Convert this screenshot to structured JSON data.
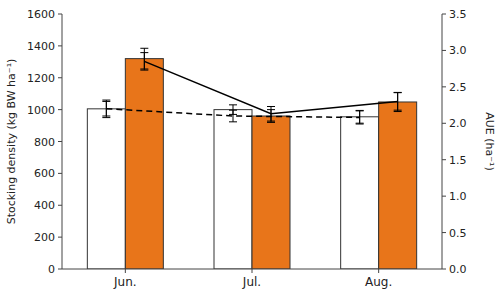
{
  "chart_data": {
    "type": "bar",
    "categories": [
      "Jun.",
      "Jul.",
      "Aug."
    ],
    "series": [
      {
        "type": "bar",
        "color": "white",
        "values": [
          1005,
          1000,
          955
        ],
        "errors": [
          55,
          30,
          40
        ]
      },
      {
        "type": "bar",
        "color": "#E8751A",
        "values": [
          1320,
          960,
          1048
        ],
        "errors": [
          65,
          40,
          60
        ]
      },
      {
        "type": "line",
        "axis": "y2",
        "color": "black",
        "line_style": "solid",
        "values": [
          2.85,
          2.13,
          2.3
        ],
        "errors": [
          0.12,
          0.1,
          0.12
        ]
      },
      {
        "type": "line",
        "axis": "y2",
        "color": "black",
        "line_style": "dashed",
        "values": [
          2.2,
          2.1,
          2.08
        ],
        "errors": [
          0.1,
          0.08,
          0.09
        ]
      }
    ],
    "ylabel": "Stocking density (kg BW ha⁻¹)",
    "y2label": "AUE (ha⁻¹)",
    "ylim": [
      0,
      1600
    ],
    "yticks": [
      0,
      200,
      400,
      600,
      800,
      1000,
      1200,
      1400,
      1600
    ],
    "y2lim": [
      0.0,
      3.5
    ],
    "y2ticks": [
      {
        "value": 0.0,
        "label": "0.0"
      },
      0.5,
      {
        "value": 1.0,
        "label": "1.0"
      },
      1.5,
      {
        "value": 2.0,
        "label": "2.0"
      },
      2.5,
      {
        "value": 3.0,
        "label": "3.0"
      },
      3.5
    ],
    "grid": false
  }
}
